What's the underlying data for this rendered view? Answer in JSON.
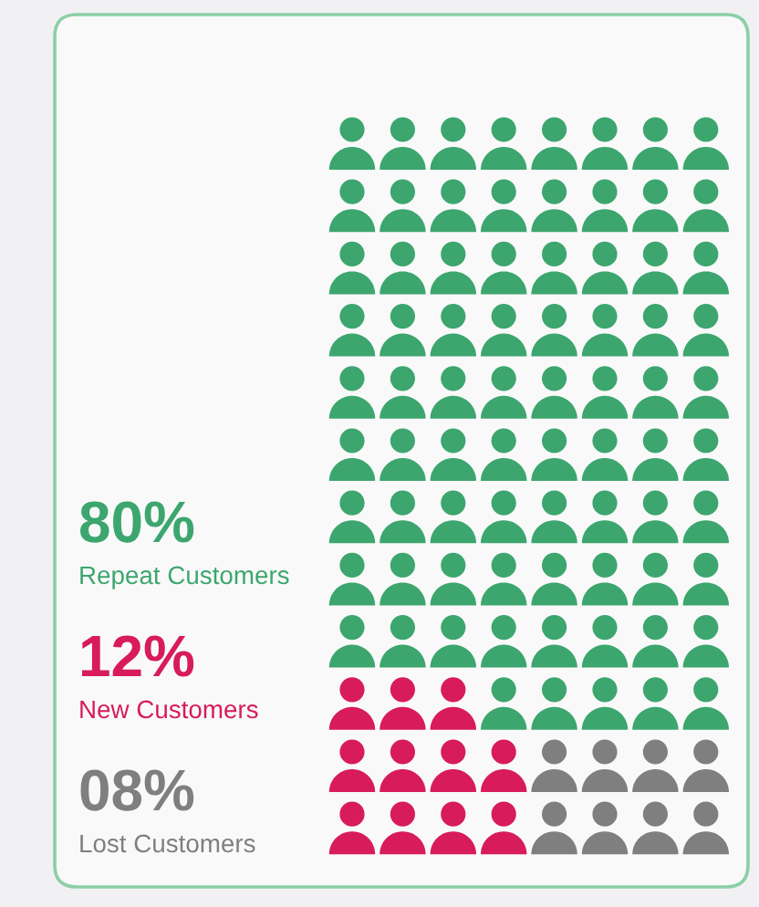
{
  "chart_data": {
    "type": "other",
    "categories": [
      "Repeat Customers",
      "New Customers",
      "Lost Customers"
    ],
    "values": [
      80,
      12,
      8
    ],
    "value_labels": [
      "80%",
      "12%",
      "08%"
    ],
    "colors": [
      "#3ca66e",
      "#d81b5b",
      "#7f7f7f"
    ]
  }
}
